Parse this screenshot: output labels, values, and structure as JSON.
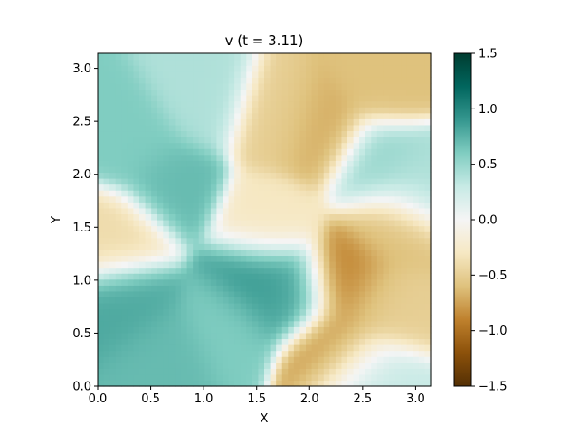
{
  "chart_data": {
    "type": "heatmap",
    "title": "v (t = 3.11)",
    "xlabel": "X",
    "ylabel": "Y",
    "xlim": [
      0,
      3.14159
    ],
    "ylim": [
      0,
      3.14159
    ],
    "x_ticks": [
      {
        "value": 0.0,
        "label": "0.0"
      },
      {
        "value": 0.5,
        "label": "0.5"
      },
      {
        "value": 1.0,
        "label": "1.0"
      },
      {
        "value": 1.5,
        "label": "1.5"
      },
      {
        "value": 2.0,
        "label": "2.0"
      },
      {
        "value": 2.5,
        "label": "2.5"
      },
      {
        "value": 3.0,
        "label": "3.0"
      }
    ],
    "y_ticks": [
      {
        "value": 0.0,
        "label": "0.0"
      },
      {
        "value": 0.5,
        "label": "0.5"
      },
      {
        "value": 1.0,
        "label": "1.0"
      },
      {
        "value": 1.5,
        "label": "1.5"
      },
      {
        "value": 2.0,
        "label": "2.0"
      },
      {
        "value": 2.5,
        "label": "2.5"
      },
      {
        "value": 3.0,
        "label": "3.0"
      }
    ],
    "colorbar": {
      "colormap": "BrBG",
      "vmin": -1.5,
      "vmax": 1.5,
      "stops": [
        "#543005",
        "#8c510a",
        "#bf812d",
        "#dfc27d",
        "#f6e8c3",
        "#f5f5f5",
        "#c7eae5",
        "#80cdc1",
        "#35978f",
        "#01665e",
        "#003c30"
      ],
      "ticks": [
        {
          "value": 1.5,
          "label": "1.5"
        },
        {
          "value": 1.0,
          "label": "1.0"
        },
        {
          "value": 0.5,
          "label": "0.5"
        },
        {
          "value": 0.0,
          "label": "0.0"
        },
        {
          "value": -0.5,
          "label": "−0.5"
        },
        {
          "value": -1.0,
          "label": "−1.0"
        },
        {
          "value": -1.5,
          "label": "−1.5"
        }
      ]
    },
    "regions": [
      {
        "x": 0.35,
        "y": 2.3,
        "v": 0.6
      },
      {
        "x": 0.7,
        "y": 1.9,
        "v": 0.7
      },
      {
        "x": 0.3,
        "y": 0.8,
        "v": 0.8
      },
      {
        "x": 0.65,
        "y": 0.35,
        "v": 0.7
      },
      {
        "x": 1.5,
        "y": 1.0,
        "v": 0.9
      },
      {
        "x": 1.8,
        "y": 0.9,
        "v": 0.8
      },
      {
        "x": 1.2,
        "y": 0.6,
        "v": 0.6
      },
      {
        "x": 1.0,
        "y": 2.7,
        "v": 0.4
      },
      {
        "x": 0.2,
        "y": 1.4,
        "v": -0.4
      },
      {
        "x": 1.7,
        "y": 2.5,
        "v": -0.5
      },
      {
        "x": 2.1,
        "y": 2.4,
        "v": -0.7
      },
      {
        "x": 2.7,
        "y": 2.9,
        "v": -0.6
      },
      {
        "x": 1.6,
        "y": 1.55,
        "v": -0.3
      },
      {
        "x": 2.35,
        "y": 1.0,
        "v": -0.9
      },
      {
        "x": 2.7,
        "y": 0.8,
        "v": -0.5
      },
      {
        "x": 2.25,
        "y": 0.35,
        "v": -0.8
      },
      {
        "x": 2.8,
        "y": 1.5,
        "v": -0.6
      },
      {
        "x": 2.65,
        "y": 2.1,
        "v": 0.5
      },
      {
        "x": 3.0,
        "y": 1.9,
        "v": 0.4
      },
      {
        "x": 2.5,
        "y": 0.1,
        "v": 0.3
      }
    ]
  }
}
